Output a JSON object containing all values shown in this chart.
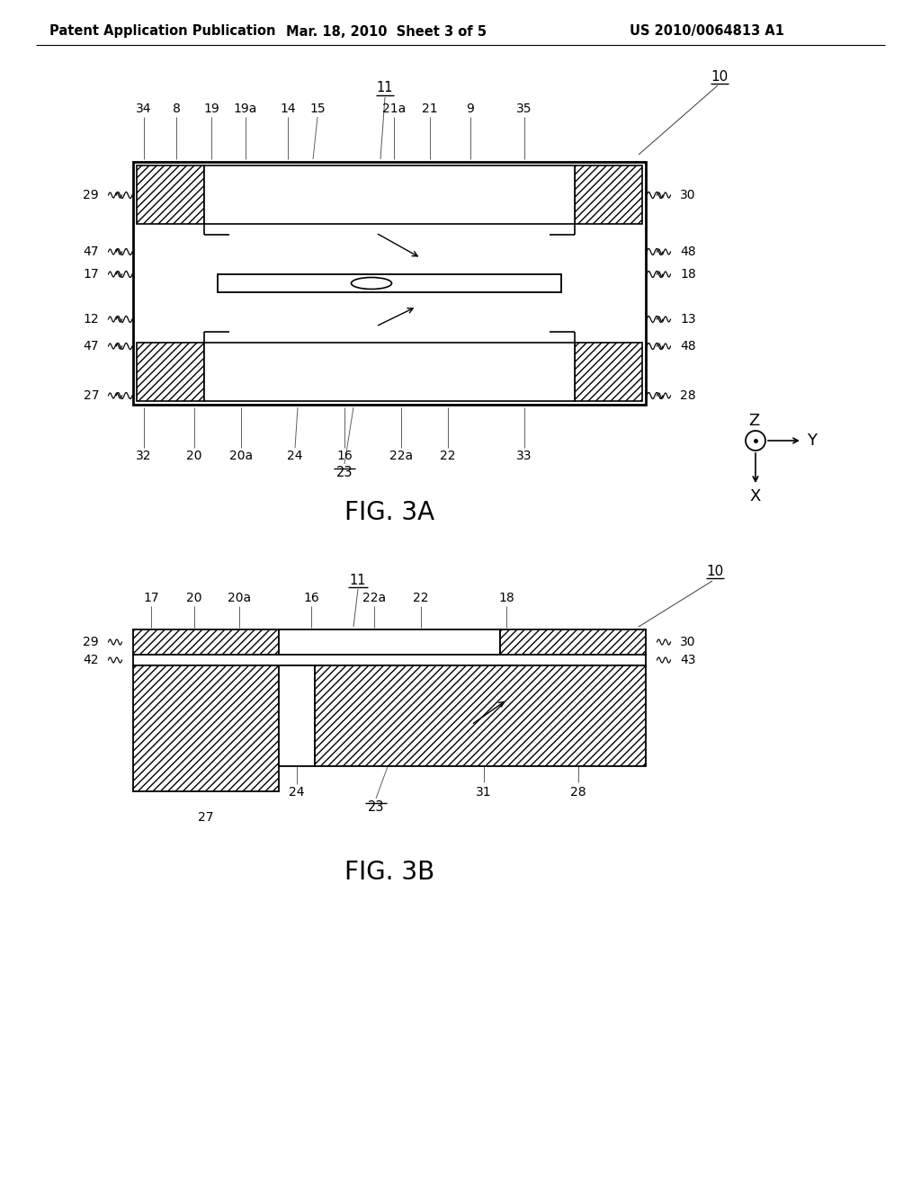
{
  "header_left": "Patent Application Publication",
  "header_mid": "Mar. 18, 2010  Sheet 3 of 5",
  "header_right": "US 2010/0064813 A1",
  "fig3a_label": "FIG. 3A",
  "fig3b_label": "FIG. 3B",
  "bg_color": "#ffffff",
  "line_color": "#000000"
}
